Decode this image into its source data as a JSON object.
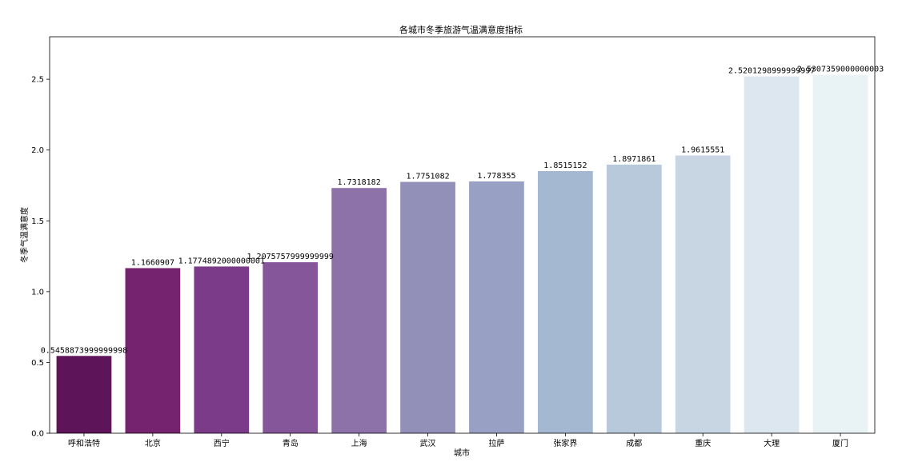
{
  "chart_data": {
    "type": "bar",
    "title": "各城市冬季旅游气温满意度指标",
    "xlabel": "城市",
    "ylabel": "冬季气温满意度",
    "categories": [
      "呼和浩特",
      "北京",
      "西宁",
      "青岛",
      "上海",
      "武汉",
      "拉萨",
      "张家界",
      "成都",
      "重庆",
      "大理",
      "厦门"
    ],
    "values": [
      0.5458873999999998,
      1.1660907,
      1.1774892000000001,
      1.2075757999999999,
      1.7318182,
      1.7751082,
      1.778355,
      1.8515152,
      1.8971861,
      1.9615551,
      2.5201298999999997,
      2.5307359000000003
    ],
    "value_labels": [
      "0.5458873999999998",
      "1.1660907",
      "1.1774892000000001",
      "1.2075757999999999",
      "1.7318182",
      "1.7751082",
      "1.778355",
      "1.8515152",
      "1.8971861",
      "1.9615551",
      "2.5201298999999997",
      "2.5307359000000003"
    ],
    "colors": [
      "#5e1458",
      "#76236f",
      "#7c3b88",
      "#86569b",
      "#8c72a9",
      "#9290b8",
      "#98a1c4",
      "#a5b8d2",
      "#b9c9dc",
      "#c8d6e4",
      "#dde7ef",
      "#e9f2f5"
    ],
    "yticks": [
      "0.0",
      "0.5",
      "1.0",
      "1.5",
      "2.0",
      "2.5"
    ],
    "ylim": [
      0,
      2.8
    ],
    "grid": false,
    "legend": "none"
  }
}
